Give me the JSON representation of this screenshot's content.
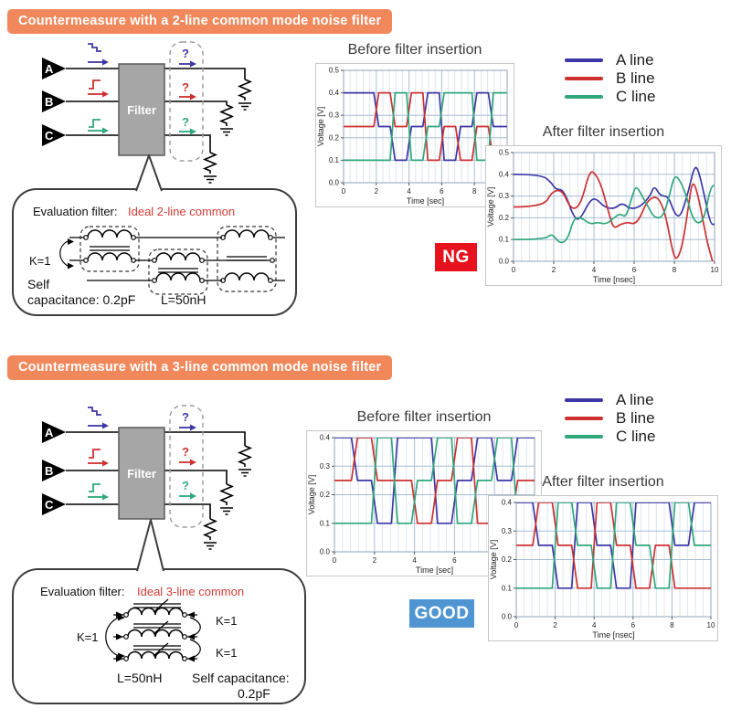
{
  "colors": {
    "banner_orange": "#F1885C",
    "line_a": "#3C36A6",
    "line_b": "#CE3030",
    "line_c": "#2EA77A",
    "accent_red": "#D23B35",
    "filter_gray": "#A6A6A6",
    "ng_red": "#E8111E",
    "good_blue": "#4E95D2"
  },
  "sections": [
    {
      "header": "Countermeasure with a 2-line common mode noise filter",
      "circuit": {
        "inputs": [
          "A",
          "B",
          "C"
        ],
        "filter_label": "Filter",
        "output_unknown": "?"
      },
      "callout": {
        "label": "Evaluation filter:",
        "type": "Ideal 2-line common",
        "k1": "K=1",
        "self_line1": "Self",
        "self_line2": "capacitance: 0.2pF",
        "inductance": "L=50nH"
      },
      "legend": [
        {
          "label": "A line",
          "color": "#3C36A6"
        },
        {
          "label": "B line",
          "color": "#CE3030"
        },
        {
          "label": "C line",
          "color": "#2EA77A"
        }
      ],
      "verdict": {
        "label": "NG",
        "color": "#E8111E"
      }
    },
    {
      "header": "Countermeasure with a 3-line common mode noise filter",
      "circuit": {
        "inputs": [
          "A",
          "B",
          "C"
        ],
        "filter_label": "Filter",
        "output_unknown": "?"
      },
      "callout": {
        "label": "Evaluation filter:",
        "type": "Ideal 3-line common",
        "k1": "K=1",
        "k2": "K=1",
        "k3": "K=1",
        "inductance": "L=50nH",
        "self_line1": "Self capacitance:",
        "self_line2": "0.2pF"
      },
      "legend": [
        {
          "label": "A line",
          "color": "#3C36A6"
        },
        {
          "label": "B line",
          "color": "#CE3030"
        },
        {
          "label": "C line",
          "color": "#2EA77A"
        }
      ],
      "verdict": {
        "label": "GOOD",
        "color": "#4E95D2"
      }
    }
  ],
  "chart_data": [
    {
      "id": "top-before",
      "type": "line",
      "title": "Before filter insertion",
      "xlabel": "Time [sec]",
      "ylabel": "Voltage [V]",
      "xlim": [
        0,
        10
      ],
      "ylim": [
        0,
        0.5
      ],
      "xminor": 0.4,
      "grid": true,
      "legend_position": "outside-right",
      "xticks": [
        "0",
        "2",
        "4",
        "6",
        "8",
        "10"
      ],
      "yticks": [
        "0.0",
        "0.1",
        "0.2",
        "0.3",
        "0.4",
        "0.5"
      ],
      "series": [
        {
          "name": "A line",
          "color": "#3C36A6",
          "levels": [
            0.4,
            0.4,
            0.25,
            0.1,
            0.25,
            0.4,
            0.1,
            0.25,
            0.4,
            0.25
          ]
        },
        {
          "name": "B line",
          "color": "#CE3030",
          "levels": [
            0.25,
            0.25,
            0.4,
            0.25,
            0.4,
            0.1,
            0.25,
            0.1,
            0.25,
            0.1
          ]
        },
        {
          "name": "C line",
          "color": "#2EA77A",
          "levels": [
            0.1,
            0.1,
            0.1,
            0.4,
            0.1,
            0.25,
            0.4,
            0.4,
            0.1,
            0.4
          ]
        }
      ]
    },
    {
      "id": "top-after",
      "type": "line",
      "title": "After filter insertion",
      "xlabel": "Time [nsec]",
      "ylabel": "Voltage [V]",
      "xlim": [
        0,
        10
      ],
      "ylim": [
        0,
        0.5
      ],
      "xminor": 0.4,
      "grid": true,
      "xticks": [
        "0",
        "2",
        "4",
        "6",
        "8",
        "10"
      ],
      "yticks": [
        "0.0",
        "0.1",
        "0.2",
        "0.3",
        "0.4",
        "0.5"
      ],
      "series": [
        {
          "name": "A line",
          "color": "#3C36A6",
          "smooth": true,
          "points": [
            [
              0,
              0.4
            ],
            [
              1.4,
              0.4
            ],
            [
              1.9,
              0.36
            ],
            [
              2.1,
              0.33
            ],
            [
              2.5,
              0.33
            ],
            [
              3,
              0.2
            ],
            [
              3.3,
              0.19
            ],
            [
              3.8,
              0.28
            ],
            [
              4.1,
              0.29
            ],
            [
              4.5,
              0.25
            ],
            [
              5,
              0.24
            ],
            [
              5.4,
              0.27
            ],
            [
              5.8,
              0.24
            ],
            [
              6.3,
              0.25
            ],
            [
              6.8,
              0.3
            ],
            [
              7,
              0.35
            ],
            [
              7.3,
              0.3
            ],
            [
              7.7,
              0.3
            ],
            [
              8,
              0.22
            ],
            [
              8.3,
              0.2
            ],
            [
              8.7,
              0.32
            ],
            [
              9,
              0.44
            ],
            [
              9.2,
              0.42
            ],
            [
              9.5,
              0.3
            ],
            [
              9.8,
              0.17
            ],
            [
              10,
              0.17
            ]
          ]
        },
        {
          "name": "B line",
          "color": "#CE3030",
          "smooth": true,
          "points": [
            [
              0,
              0.25
            ],
            [
              1.5,
              0.25
            ],
            [
              1.9,
              0.32
            ],
            [
              2.4,
              0.33
            ],
            [
              2.8,
              0.25
            ],
            [
              3.1,
              0.24
            ],
            [
              3.4,
              0.28
            ],
            [
              3.8,
              0.42
            ],
            [
              4.1,
              0.4
            ],
            [
              4.4,
              0.34
            ],
            [
              4.8,
              0.2
            ],
            [
              5,
              0.15
            ],
            [
              5.3,
              0.17
            ],
            [
              5.7,
              0.18
            ],
            [
              6,
              0.17
            ],
            [
              6.3,
              0.2
            ],
            [
              6.6,
              0.27
            ],
            [
              7,
              0.3
            ],
            [
              7.3,
              0.28
            ],
            [
              7.6,
              0.2
            ],
            [
              7.9,
              0.05
            ],
            [
              8.1,
              0
            ],
            [
              8.4,
              0.07
            ],
            [
              8.7,
              0.25
            ],
            [
              8.9,
              0.38
            ],
            [
              9.2,
              0.3
            ],
            [
              9.6,
              0.1
            ],
            [
              9.9,
              0
            ]
          ]
        },
        {
          "name": "C line",
          "color": "#2EA77A",
          "smooth": true,
          "points": [
            [
              0,
              0.1
            ],
            [
              1.6,
              0.1
            ],
            [
              1.9,
              0.13
            ],
            [
              2.3,
              0.08
            ],
            [
              2.7,
              0.1
            ],
            [
              3,
              0.2
            ],
            [
              3.4,
              0.2
            ],
            [
              3.8,
              0.17
            ],
            [
              4.2,
              0.18
            ],
            [
              4.6,
              0.17
            ],
            [
              5,
              0.2
            ],
            [
              5.3,
              0.22
            ],
            [
              5.6,
              0.2
            ],
            [
              5.9,
              0.3
            ],
            [
              6.1,
              0.35
            ],
            [
              6.4,
              0.3
            ],
            [
              6.7,
              0.25
            ],
            [
              7,
              0.2
            ],
            [
              7.4,
              0.2
            ],
            [
              7.7,
              0.28
            ],
            [
              8,
              0.4
            ],
            [
              8.3,
              0.37
            ],
            [
              8.6,
              0.3
            ],
            [
              8.9,
              0.2
            ],
            [
              9.2,
              0.17
            ],
            [
              9.5,
              0.2
            ],
            [
              9.8,
              0.34
            ],
            [
              10,
              0.35
            ]
          ]
        }
      ]
    },
    {
      "id": "bottom-before",
      "type": "line",
      "title": "Before filter insertion",
      "xlabel": "Time [sec]",
      "ylabel": "Voltage [V]",
      "xlim": [
        0,
        10
      ],
      "ylim": [
        0,
        0.4
      ],
      "xminor": 0.4,
      "grid": true,
      "xticks": [
        "0",
        "2",
        "4",
        "6",
        "8",
        "10"
      ],
      "yticks": [
        "0.0",
        "0.1",
        "0.2",
        "0.3",
        "0.4"
      ],
      "series": [
        {
          "name": "A line",
          "color": "#3C36A6",
          "levels": [
            0.4,
            0.25,
            0.1,
            0.4,
            0.4,
            0.1,
            0.25,
            0.4,
            0.25,
            0.4
          ]
        },
        {
          "name": "B line",
          "color": "#CE3030",
          "levels": [
            0.25,
            0.4,
            0.25,
            0.25,
            0.1,
            0.25,
            0.4,
            0.1,
            0.1,
            0.25
          ]
        },
        {
          "name": "C line",
          "color": "#2EA77A",
          "levels": [
            0.1,
            0.1,
            0.4,
            0.1,
            0.25,
            0.4,
            0.1,
            0.25,
            0.4,
            0.1
          ]
        }
      ]
    },
    {
      "id": "bottom-after",
      "type": "line",
      "title": "After filter insertion",
      "xlabel": "Time [nsec]",
      "ylabel": "Voltage [V]",
      "xlim": [
        0,
        10
      ],
      "ylim": [
        0,
        0.4
      ],
      "xminor": 0.4,
      "grid": true,
      "xticks": [
        "0",
        "2",
        "4",
        "6",
        "8",
        "10"
      ],
      "yticks": [
        "0.0",
        "0.1",
        "0.2",
        "0.3",
        "0.4"
      ],
      "series": [
        {
          "name": "A line",
          "color": "#3C36A6",
          "levels": [
            0.4,
            0.25,
            0.1,
            0.4,
            0.25,
            0.1,
            0.4,
            0.4,
            0.25,
            0.4
          ]
        },
        {
          "name": "B line",
          "color": "#CE3030",
          "levels": [
            0.25,
            0.4,
            0.25,
            0.1,
            0.4,
            0.25,
            0.1,
            0.25,
            0.1,
            0.1
          ]
        },
        {
          "name": "C line",
          "color": "#2EA77A",
          "levels": [
            0.1,
            0.1,
            0.4,
            0.25,
            0.1,
            0.4,
            0.25,
            0.1,
            0.4,
            0.25
          ]
        }
      ]
    }
  ]
}
